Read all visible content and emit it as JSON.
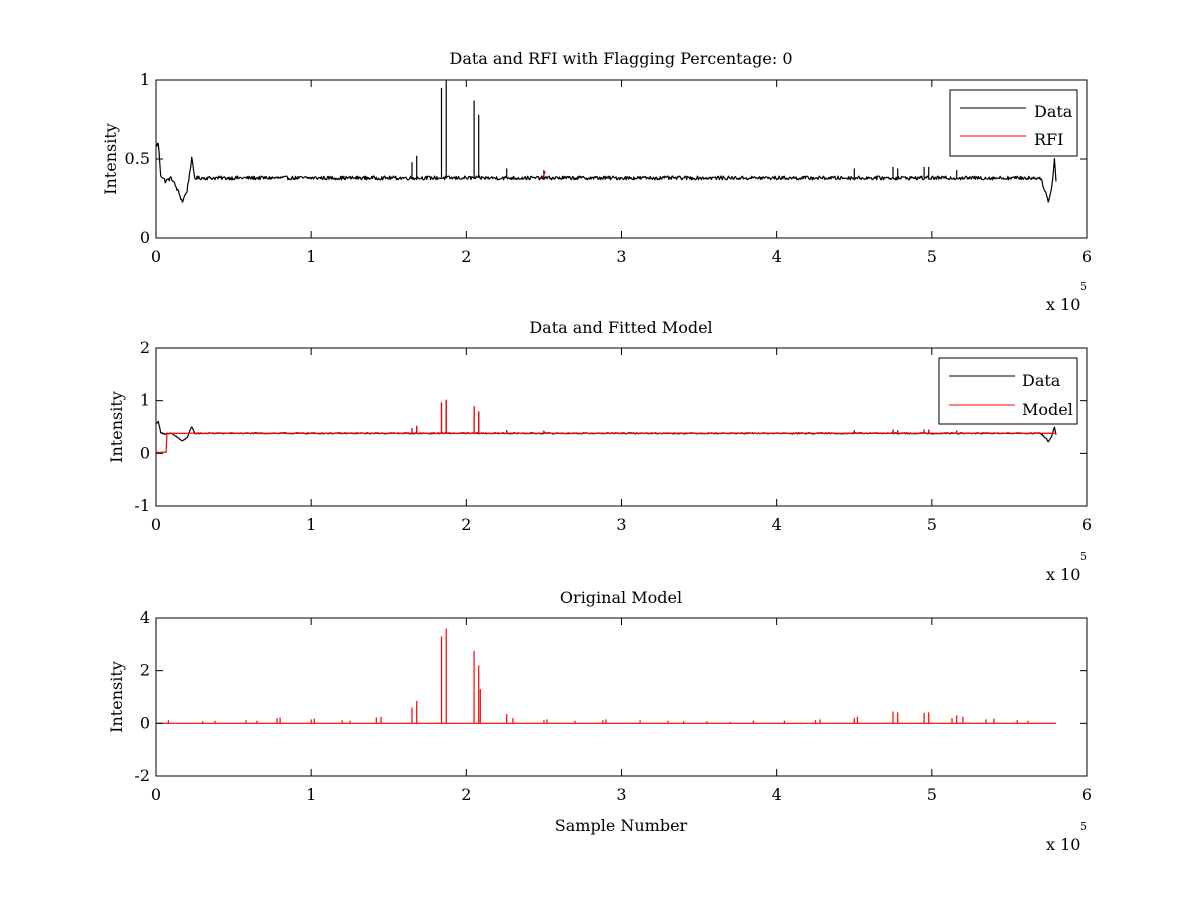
{
  "chart_data": [
    {
      "type": "line",
      "title": "Data and RFI with Flagging Percentage: 0",
      "xlabel": "",
      "ylabel": "Intensity",
      "xlim": [
        0,
        600000
      ],
      "ylim": [
        0,
        1
      ],
      "x_ticks": [
        0,
        1,
        2,
        3,
        4,
        5,
        6
      ],
      "x_tick_labels": [
        "0",
        "1",
        "2",
        "3",
        "4",
        "5",
        "6"
      ],
      "y_ticks": [
        0,
        0.5,
        1
      ],
      "y_tick_labels": [
        "0",
        "0.5",
        "1"
      ],
      "x_exponent_label": "x 10",
      "x_exponent": "5",
      "x_data_max": 580000,
      "grid": false,
      "legend_position": "top-right",
      "legend": [
        {
          "label": "Data",
          "color": "#000000"
        },
        {
          "label": "RFI",
          "color": "#ff0000"
        }
      ],
      "series": [
        {
          "name": "Data",
          "color": "#000000",
          "baseline": 0.38,
          "baseline_noise": 0.012,
          "profile": [
            [
              0,
              0.58
            ],
            [
              1500,
              0.6
            ],
            [
              3000,
              0.4
            ],
            [
              6000,
              0.36
            ],
            [
              10000,
              0.38
            ],
            [
              14000,
              0.3
            ],
            [
              17000,
              0.23
            ],
            [
              20000,
              0.3
            ],
            [
              23000,
              0.5
            ],
            [
              25000,
              0.38
            ],
            [
              570000,
              0.38
            ],
            [
              573000,
              0.3
            ],
            [
              575000,
              0.23
            ],
            [
              577000,
              0.3
            ],
            [
              579000,
              0.5
            ],
            [
              580000,
              0.36
            ]
          ],
          "spikes": [
            [
              165000,
              0.48
            ],
            [
              168000,
              0.52
            ],
            [
              184000,
              0.95
            ],
            [
              187000,
              1.0
            ],
            [
              205000,
              0.87
            ],
            [
              208000,
              0.78
            ],
            [
              226000,
              0.44
            ],
            [
              250000,
              0.43
            ],
            [
              450000,
              0.44
            ],
            [
              475000,
              0.45
            ],
            [
              478000,
              0.44
            ],
            [
              495000,
              0.45
            ],
            [
              498000,
              0.45
            ],
            [
              516000,
              0.43
            ]
          ]
        },
        {
          "name": "RFI",
          "color": "#ff0000",
          "segments": [
            {
              "x": [
                249000,
                251000
              ],
              "y": [
                0.38,
                0.42
              ]
            }
          ]
        }
      ]
    },
    {
      "type": "line",
      "title": "Data and Fitted Model",
      "xlabel": "",
      "ylabel": "Intensity",
      "xlim": [
        0,
        600000
      ],
      "ylim": [
        -1,
        2
      ],
      "x_ticks": [
        0,
        1,
        2,
        3,
        4,
        5,
        6
      ],
      "x_tick_labels": [
        "0",
        "1",
        "2",
        "3",
        "4",
        "5",
        "6"
      ],
      "y_ticks": [
        -1,
        0,
        1,
        2
      ],
      "y_tick_labels": [
        "-1",
        "0",
        "1",
        "2"
      ],
      "x_exponent_label": "x 10",
      "x_exponent": "5",
      "x_data_max": 580000,
      "grid": false,
      "legend_position": "top-right",
      "legend": [
        {
          "label": "Data",
          "color": "#000000"
        },
        {
          "label": "Model",
          "color": "#ff0000"
        }
      ],
      "series": [
        {
          "name": "Data",
          "color": "#000000",
          "baseline": 0.38,
          "baseline_noise": 0.012,
          "profile": [
            [
              0,
              0.58
            ],
            [
              1500,
              0.6
            ],
            [
              3000,
              0.4
            ],
            [
              6000,
              0.36
            ],
            [
              10000,
              0.38
            ],
            [
              14000,
              0.3
            ],
            [
              17000,
              0.23
            ],
            [
              20000,
              0.3
            ],
            [
              23000,
              0.5
            ],
            [
              25000,
              0.38
            ],
            [
              570000,
              0.38
            ],
            [
              573000,
              0.3
            ],
            [
              575000,
              0.23
            ],
            [
              577000,
              0.3
            ],
            [
              579000,
              0.5
            ],
            [
              580000,
              0.36
            ]
          ],
          "spikes": [
            [
              165000,
              0.48
            ],
            [
              168000,
              0.52
            ],
            [
              184000,
              0.95
            ],
            [
              187000,
              1.0
            ],
            [
              205000,
              0.87
            ],
            [
              208000,
              0.78
            ],
            [
              226000,
              0.44
            ],
            [
              250000,
              0.43
            ],
            [
              450000,
              0.44
            ],
            [
              475000,
              0.45
            ],
            [
              478000,
              0.44
            ],
            [
              495000,
              0.45
            ],
            [
              498000,
              0.45
            ],
            [
              516000,
              0.43
            ]
          ]
        },
        {
          "name": "Model",
          "color": "#ff0000",
          "baseline": 0.38,
          "baseline_noise": 0.004,
          "profile": [
            [
              0,
              0.02
            ],
            [
              6500,
              0.02
            ],
            [
              7000,
              0.38
            ],
            [
              580000,
              0.38
            ]
          ],
          "spikes": [
            [
              165000,
              0.48
            ],
            [
              168000,
              0.52
            ],
            [
              184000,
              0.97
            ],
            [
              187000,
              1.02
            ],
            [
              205000,
              0.9
            ],
            [
              208000,
              0.8
            ],
            [
              226000,
              0.42
            ],
            [
              450000,
              0.42
            ],
            [
              475000,
              0.44
            ],
            [
              478000,
              0.43
            ],
            [
              495000,
              0.44
            ],
            [
              498000,
              0.44
            ],
            [
              516000,
              0.42
            ]
          ]
        }
      ]
    },
    {
      "type": "line",
      "title": "Original Model",
      "xlabel": "Sample Number",
      "ylabel": "Intensity",
      "xlim": [
        0,
        600000
      ],
      "ylim": [
        -2,
        4
      ],
      "x_ticks": [
        0,
        1,
        2,
        3,
        4,
        5,
        6
      ],
      "x_tick_labels": [
        "0",
        "1",
        "2",
        "3",
        "4",
        "5",
        "6"
      ],
      "y_ticks": [
        -2,
        0,
        2,
        4
      ],
      "y_tick_labels": [
        "-2",
        "0",
        "2",
        "4"
      ],
      "x_exponent_label": "x 10",
      "x_exponent": "5",
      "x_data_max": 580000,
      "grid": false,
      "legend": [],
      "series": [
        {
          "color": "#ff0000",
          "baseline": 0.0,
          "baseline_noise": 0.0,
          "profile": [
            [
              0,
              0.0
            ],
            [
              580000,
              0.0
            ]
          ],
          "spikes": [
            [
              8000,
              0.12
            ],
            [
              30000,
              0.08
            ],
            [
              38000,
              0.1
            ],
            [
              58000,
              0.12
            ],
            [
              65000,
              0.1
            ],
            [
              78000,
              0.2
            ],
            [
              80000,
              0.22
            ],
            [
              100000,
              0.15
            ],
            [
              102000,
              0.18
            ],
            [
              120000,
              0.12
            ],
            [
              125000,
              0.1
            ],
            [
              142000,
              0.22
            ],
            [
              145000,
              0.25
            ],
            [
              165000,
              0.6
            ],
            [
              168000,
              0.85
            ],
            [
              184000,
              3.3
            ],
            [
              187000,
              3.6
            ],
            [
              205000,
              2.75
            ],
            [
              208000,
              2.2
            ],
            [
              209000,
              1.3
            ],
            [
              226000,
              0.35
            ],
            [
              230000,
              0.2
            ],
            [
              250000,
              0.12
            ],
            [
              252000,
              0.15
            ],
            [
              270000,
              0.1
            ],
            [
              288000,
              0.12
            ],
            [
              290000,
              0.15
            ],
            [
              312000,
              0.12
            ],
            [
              330000,
              0.1
            ],
            [
              340000,
              0.08
            ],
            [
              355000,
              0.08
            ],
            [
              370000,
              0.06
            ],
            [
              385000,
              0.1
            ],
            [
              405000,
              0.1
            ],
            [
              425000,
              0.12
            ],
            [
              428000,
              0.15
            ],
            [
              450000,
              0.2
            ],
            [
              452000,
              0.25
            ],
            [
              475000,
              0.45
            ],
            [
              478000,
              0.42
            ],
            [
              495000,
              0.4
            ],
            [
              498000,
              0.42
            ],
            [
              513000,
              0.2
            ],
            [
              516000,
              0.3
            ],
            [
              520000,
              0.25
            ],
            [
              535000,
              0.15
            ],
            [
              540000,
              0.18
            ],
            [
              555000,
              0.12
            ],
            [
              562000,
              0.1
            ]
          ]
        }
      ]
    }
  ]
}
